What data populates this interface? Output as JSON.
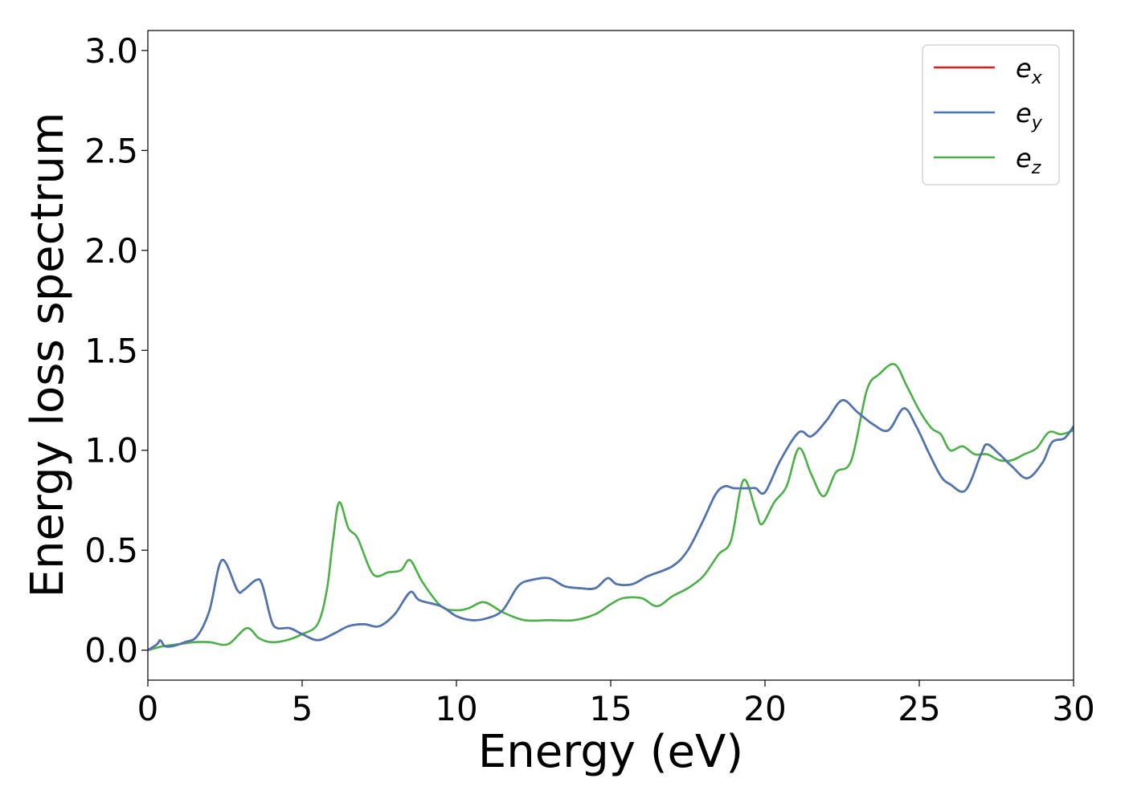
{
  "chart_data": {
    "type": "line",
    "title": "",
    "xlabel": "Energy (eV)",
    "ylabel": "Energy loss spectrum",
    "xlim": [
      0,
      30
    ],
    "ylim": [
      -0.15,
      3.1
    ],
    "x_ticks": [
      0,
      5,
      10,
      15,
      20,
      25,
      30
    ],
    "y_ticks": [
      0.0,
      0.5,
      1.0,
      1.5,
      2.0,
      2.5,
      3.0
    ],
    "x_tick_labels": [
      "0",
      "5",
      "10",
      "15",
      "20",
      "25",
      "30"
    ],
    "y_tick_labels": [
      "0.0",
      "0.5",
      "1.0",
      "1.5",
      "2.0",
      "2.5",
      "3.0"
    ],
    "grid": false,
    "legend_position": "top-right",
    "legend": [
      {
        "base": "e",
        "sub": "x",
        "color": "#e41a1c"
      },
      {
        "base": "e",
        "sub": "y",
        "color": "#4a77b0"
      },
      {
        "base": "e",
        "sub": "z",
        "color": "#4daf4a"
      }
    ],
    "series": [
      {
        "name": "e_x",
        "color": "#e41a1c",
        "points": [
          [
            0,
            0.0
          ],
          [
            0.3,
            0.03
          ],
          [
            0.4,
            0.05
          ],
          [
            0.55,
            0.02
          ],
          [
            0.8,
            0.02
          ],
          [
            1.2,
            0.04
          ],
          [
            1.6,
            0.07
          ],
          [
            2.0,
            0.2
          ],
          [
            2.4,
            0.45
          ],
          [
            2.9,
            0.3
          ],
          [
            3.1,
            0.3
          ],
          [
            3.5,
            0.35
          ],
          [
            3.7,
            0.33
          ],
          [
            4.0,
            0.15
          ],
          [
            4.2,
            0.11
          ],
          [
            4.6,
            0.11
          ],
          [
            5.0,
            0.08
          ],
          [
            5.5,
            0.05
          ],
          [
            6.0,
            0.08
          ],
          [
            6.5,
            0.12
          ],
          [
            7.0,
            0.13
          ],
          [
            7.5,
            0.12
          ],
          [
            8.0,
            0.18
          ],
          [
            8.5,
            0.29
          ],
          [
            8.8,
            0.25
          ],
          [
            9.5,
            0.22
          ],
          [
            10.0,
            0.17
          ],
          [
            10.5,
            0.15
          ],
          [
            11.0,
            0.16
          ],
          [
            11.5,
            0.2
          ],
          [
            12.0,
            0.32
          ],
          [
            12.4,
            0.35
          ],
          [
            13.0,
            0.36
          ],
          [
            13.5,
            0.32
          ],
          [
            14.0,
            0.31
          ],
          [
            14.5,
            0.31
          ],
          [
            14.9,
            0.36
          ],
          [
            15.2,
            0.33
          ],
          [
            15.7,
            0.33
          ],
          [
            16.2,
            0.37
          ],
          [
            17.0,
            0.42
          ],
          [
            17.5,
            0.5
          ],
          [
            18.0,
            0.65
          ],
          [
            18.4,
            0.78
          ],
          [
            18.7,
            0.82
          ],
          [
            19.0,
            0.81
          ],
          [
            19.5,
            0.81
          ],
          [
            19.7,
            0.81
          ],
          [
            20.0,
            0.79
          ],
          [
            20.5,
            0.95
          ],
          [
            21.1,
            1.09
          ],
          [
            21.5,
            1.07
          ],
          [
            22.0,
            1.15
          ],
          [
            22.5,
            1.25
          ],
          [
            23.0,
            1.19
          ],
          [
            23.5,
            1.13
          ],
          [
            24.0,
            1.1
          ],
          [
            24.5,
            1.21
          ],
          [
            24.9,
            1.12
          ],
          [
            25.3,
            0.99
          ],
          [
            25.7,
            0.87
          ],
          [
            26.0,
            0.83
          ],
          [
            26.5,
            0.8
          ],
          [
            27.0,
            0.98
          ],
          [
            27.2,
            1.03
          ],
          [
            27.6,
            0.98
          ],
          [
            28.0,
            0.92
          ],
          [
            28.5,
            0.86
          ],
          [
            29.0,
            0.94
          ],
          [
            29.3,
            1.04
          ],
          [
            29.7,
            1.06
          ],
          [
            30.0,
            1.12
          ]
        ]
      },
      {
        "name": "e_y",
        "color": "#4a77b0",
        "points": [
          [
            0,
            0.0
          ],
          [
            0.3,
            0.03
          ],
          [
            0.4,
            0.05
          ],
          [
            0.55,
            0.02
          ],
          [
            0.8,
            0.02
          ],
          [
            1.2,
            0.04
          ],
          [
            1.6,
            0.07
          ],
          [
            2.0,
            0.2
          ],
          [
            2.4,
            0.45
          ],
          [
            2.9,
            0.3
          ],
          [
            3.1,
            0.3
          ],
          [
            3.5,
            0.35
          ],
          [
            3.7,
            0.33
          ],
          [
            4.0,
            0.15
          ],
          [
            4.2,
            0.11
          ],
          [
            4.6,
            0.11
          ],
          [
            5.0,
            0.08
          ],
          [
            5.5,
            0.05
          ],
          [
            6.0,
            0.08
          ],
          [
            6.5,
            0.12
          ],
          [
            7.0,
            0.13
          ],
          [
            7.5,
            0.12
          ],
          [
            8.0,
            0.18
          ],
          [
            8.5,
            0.29
          ],
          [
            8.8,
            0.25
          ],
          [
            9.5,
            0.22
          ],
          [
            10.0,
            0.17
          ],
          [
            10.5,
            0.15
          ],
          [
            11.0,
            0.16
          ],
          [
            11.5,
            0.2
          ],
          [
            12.0,
            0.32
          ],
          [
            12.4,
            0.35
          ],
          [
            13.0,
            0.36
          ],
          [
            13.5,
            0.32
          ],
          [
            14.0,
            0.31
          ],
          [
            14.5,
            0.31
          ],
          [
            14.9,
            0.36
          ],
          [
            15.2,
            0.33
          ],
          [
            15.7,
            0.33
          ],
          [
            16.2,
            0.37
          ],
          [
            17.0,
            0.42
          ],
          [
            17.5,
            0.5
          ],
          [
            18.0,
            0.65
          ],
          [
            18.4,
            0.78
          ],
          [
            18.7,
            0.82
          ],
          [
            19.0,
            0.81
          ],
          [
            19.5,
            0.81
          ],
          [
            19.7,
            0.81
          ],
          [
            20.0,
            0.79
          ],
          [
            20.5,
            0.95
          ],
          [
            21.1,
            1.09
          ],
          [
            21.5,
            1.07
          ],
          [
            22.0,
            1.15
          ],
          [
            22.5,
            1.25
          ],
          [
            23.0,
            1.19
          ],
          [
            23.5,
            1.13
          ],
          [
            24.0,
            1.1
          ],
          [
            24.5,
            1.21
          ],
          [
            24.9,
            1.12
          ],
          [
            25.3,
            0.99
          ],
          [
            25.7,
            0.87
          ],
          [
            26.0,
            0.83
          ],
          [
            26.5,
            0.8
          ],
          [
            27.0,
            0.98
          ],
          [
            27.2,
            1.03
          ],
          [
            27.6,
            0.98
          ],
          [
            28.0,
            0.92
          ],
          [
            28.5,
            0.86
          ],
          [
            29.0,
            0.94
          ],
          [
            29.3,
            1.04
          ],
          [
            29.7,
            1.06
          ],
          [
            30.0,
            1.12
          ]
        ]
      },
      {
        "name": "e_z",
        "color": "#4daf4a",
        "points": [
          [
            0,
            0.0
          ],
          [
            0.5,
            0.02
          ],
          [
            1.0,
            0.03
          ],
          [
            1.5,
            0.04
          ],
          [
            2.0,
            0.04
          ],
          [
            2.6,
            0.03
          ],
          [
            3.2,
            0.11
          ],
          [
            3.6,
            0.06
          ],
          [
            4.0,
            0.04
          ],
          [
            4.5,
            0.05
          ],
          [
            5.0,
            0.08
          ],
          [
            5.5,
            0.13
          ],
          [
            5.8,
            0.3
          ],
          [
            6.0,
            0.55
          ],
          [
            6.2,
            0.74
          ],
          [
            6.5,
            0.61
          ],
          [
            6.8,
            0.56
          ],
          [
            7.3,
            0.38
          ],
          [
            7.8,
            0.39
          ],
          [
            8.2,
            0.4
          ],
          [
            8.5,
            0.45
          ],
          [
            8.9,
            0.34
          ],
          [
            9.5,
            0.22
          ],
          [
            10.0,
            0.2
          ],
          [
            10.4,
            0.21
          ],
          [
            10.9,
            0.24
          ],
          [
            11.5,
            0.19
          ],
          [
            12.2,
            0.15
          ],
          [
            13.0,
            0.15
          ],
          [
            13.8,
            0.15
          ],
          [
            14.5,
            0.18
          ],
          [
            15.0,
            0.23
          ],
          [
            15.4,
            0.26
          ],
          [
            16.0,
            0.26
          ],
          [
            16.5,
            0.22
          ],
          [
            17.0,
            0.27
          ],
          [
            17.5,
            0.31
          ],
          [
            18.0,
            0.37
          ],
          [
            18.5,
            0.48
          ],
          [
            18.9,
            0.55
          ],
          [
            19.3,
            0.85
          ],
          [
            19.7,
            0.7
          ],
          [
            19.9,
            0.63
          ],
          [
            20.3,
            0.74
          ],
          [
            20.7,
            0.82
          ],
          [
            21.1,
            1.01
          ],
          [
            21.5,
            0.88
          ],
          [
            21.9,
            0.77
          ],
          [
            22.3,
            0.89
          ],
          [
            22.8,
            0.95
          ],
          [
            23.3,
            1.3
          ],
          [
            23.7,
            1.38
          ],
          [
            24.2,
            1.43
          ],
          [
            24.6,
            1.32
          ],
          [
            25.0,
            1.2
          ],
          [
            25.4,
            1.11
          ],
          [
            25.7,
            1.08
          ],
          [
            26.0,
            1.0
          ],
          [
            26.4,
            1.02
          ],
          [
            26.8,
            0.98
          ],
          [
            27.2,
            0.98
          ],
          [
            27.6,
            0.95
          ],
          [
            28.0,
            0.95
          ],
          [
            28.4,
            0.98
          ],
          [
            28.8,
            1.01
          ],
          [
            29.2,
            1.09
          ],
          [
            29.6,
            1.08
          ],
          [
            30.0,
            1.1
          ]
        ]
      }
    ]
  }
}
